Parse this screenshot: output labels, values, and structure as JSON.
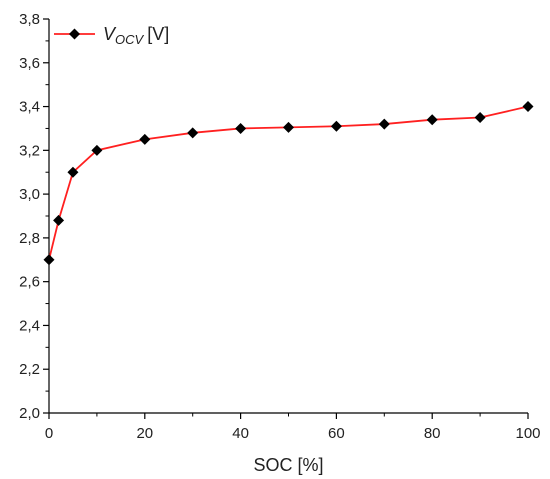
{
  "chart_data": {
    "type": "line",
    "x": [
      0,
      2,
      5,
      10,
      20,
      30,
      40,
      50,
      60,
      70,
      80,
      90,
      100
    ],
    "series": [
      {
        "name_main": "V",
        "name_sub": "OCV",
        "name_unit": "[V]",
        "values": [
          2.7,
          2.88,
          3.1,
          3.2,
          3.25,
          3.28,
          3.3,
          3.305,
          3.31,
          3.32,
          3.34,
          3.35,
          3.4
        ],
        "line_color": "#ff2020",
        "marker_color": "#000000",
        "marker": "diamond"
      }
    ],
    "xlabel": "SOC [%]",
    "ylabel": "",
    "xlim": [
      0,
      100
    ],
    "ylim": [
      2.0,
      3.8
    ],
    "xticks": [
      0,
      20,
      40,
      60,
      80,
      100
    ],
    "xtick_labels": [
      "0",
      "20",
      "40",
      "60",
      "80",
      "100"
    ],
    "yticks": [
      2.0,
      2.2,
      2.4,
      2.6,
      2.8,
      3.0,
      3.2,
      3.4,
      3.6,
      3.8
    ],
    "ytick_labels": [
      "2,0",
      "2,2",
      "2,4",
      "2,6",
      "2,8",
      "3,0",
      "3,2",
      "3,4",
      "3,6",
      "3,8"
    ],
    "grid": false,
    "legend_position": "top-left"
  }
}
